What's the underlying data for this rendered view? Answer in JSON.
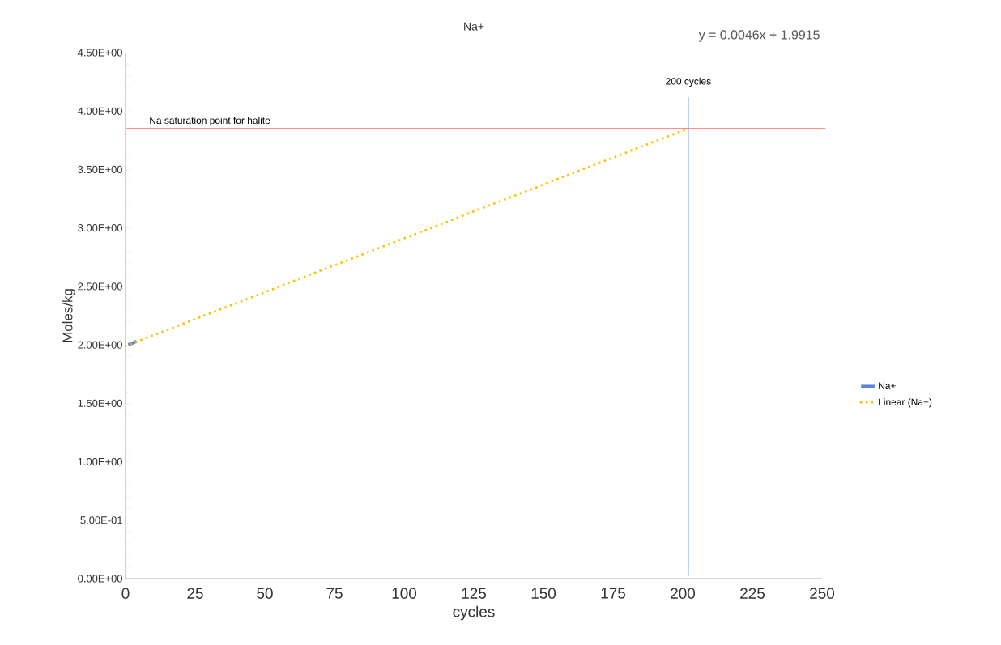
{
  "chart_data": {
    "type": "line",
    "title": "Na+",
    "xlabel": "cycles",
    "ylabel": "Moles/kg",
    "annotations": [
      "y = 0.0046x + 1.9915"
    ],
    "series": [
      {
        "name": "Na+",
        "color": "#5b86d6",
        "x": [
          1,
          4
        ],
        "values": [
          2.0,
          2.03
        ]
      },
      {
        "name": "Linear (Na+)",
        "type": "line",
        "color": "#ffc000",
        "line_style": "dotted",
        "x": [
          0,
          202
        ],
        "values": [
          1.99,
          3.85
        ]
      }
    ],
    "xlim": [
      0,
      250
    ],
    "xticks": [
      0,
      25,
      50,
      75,
      100,
      125,
      150,
      175,
      200,
      225,
      250
    ],
    "ylim": [
      0,
      4.5
    ],
    "yticks": [
      {
        "value": 0,
        "label": "0.00E+00"
      },
      {
        "value": 0.5,
        "label": "5.00E-01"
      },
      {
        "value": 1,
        "label": "1.00E+00"
      },
      {
        "value": 1.5,
        "label": "1.50E+00"
      },
      {
        "value": 2,
        "label": "2.00E+00"
      },
      {
        "value": 2.5,
        "label": "2.50E+00"
      },
      {
        "value": 3,
        "label": "3.00E+00"
      },
      {
        "value": 3.5,
        "label": "3.50E+00"
      },
      {
        "value": 4,
        "label": "4.00E+00"
      },
      {
        "value": 4.5,
        "label": "4.50E+00"
      }
    ],
    "ref_lines": [
      {
        "axis": "y",
        "value": 3.85,
        "label": "Na saturation point for halite",
        "color": "#ff6b6b"
      },
      {
        "axis": "x",
        "value": 202,
        "label": "200 cycles",
        "color": "#7f9fdc"
      }
    ],
    "legend": "right",
    "grid": false
  }
}
